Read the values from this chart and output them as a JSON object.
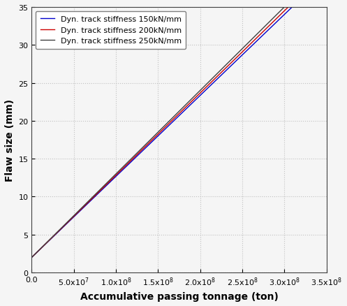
{
  "lines": [
    {
      "label": "Dyn. track stiffness 150kN/mm",
      "color": "#0000CC",
      "intercept": 2.0,
      "slope": 1.067e-07
    },
    {
      "label": "Dyn. track stiffness 200kN/mm",
      "color": "#CC0000",
      "intercept": 2.0,
      "slope": 1.083e-07
    },
    {
      "label": "Dyn. track stiffness 250kN/mm",
      "color": "#404040",
      "intercept": 2.0,
      "slope": 1.1e-07
    }
  ],
  "xlabel": "Accumulative passing tonnage (ton)",
  "ylabel": "Flaw size (mm)",
  "xlim": [
    0,
    350000000.0
  ],
  "ylim": [
    0,
    35
  ],
  "xticks": [
    0.0,
    50000000.0,
    100000000.0,
    150000000.0,
    200000000.0,
    250000000.0,
    300000000.0,
    350000000.0
  ],
  "yticks": [
    0,
    5,
    10,
    15,
    20,
    25,
    30,
    35
  ],
  "figsize": [
    4.97,
    4.39
  ],
  "dpi": 100,
  "grid_color": "#c0c0c0",
  "grid_style": "dotted",
  "legend_fontsize": 8,
  "axis_label_fontsize": 10,
  "tick_fontsize": 8,
  "background_color": "#f5f5f5"
}
